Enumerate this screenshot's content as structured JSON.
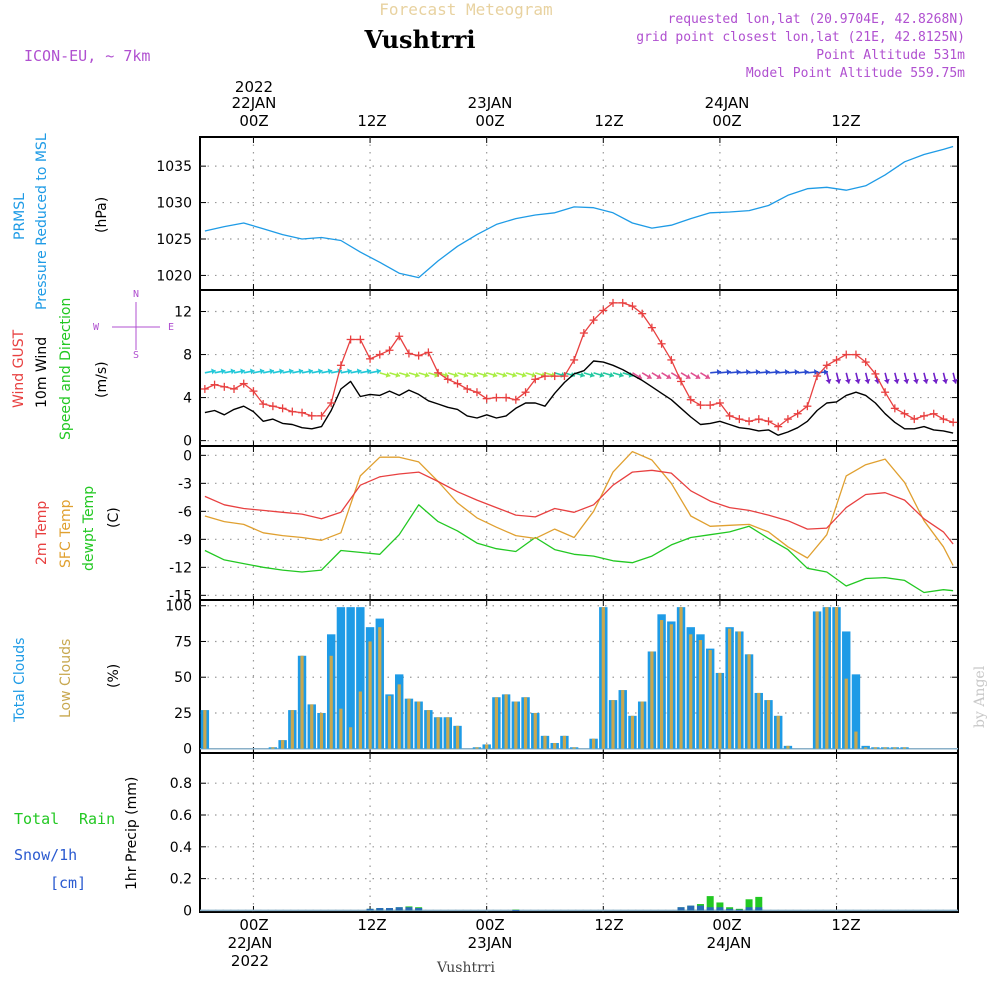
{
  "header": {
    "top_title": "Forecast Meteogram",
    "location": "Vushtrri",
    "model": "ICON-EU, ~ 7km",
    "requested": "requested lon,lat (20.9704E, 42.8268N)",
    "grid_point": "grid point closest lon,lat (21E, 42.8125N)",
    "point_altitude": "Point Altitude 531m",
    "model_altitude": "Model Point Altitude 559.75m",
    "watermark": "by Angel",
    "bottom_location": "Vushtrri"
  },
  "time_axis": {
    "top_year": "2022",
    "top_day_labels": [
      "22JAN",
      "23JAN",
      "24JAN"
    ],
    "top_hour_labels": [
      "00Z",
      "12Z",
      "00Z",
      "12Z",
      "00Z",
      "12Z"
    ],
    "bottom_hour_labels": [
      "00Z",
      "12Z",
      "00Z",
      "12Z",
      "00Z",
      "12Z"
    ],
    "bottom_day_labels": [
      "22JAN",
      "23JAN",
      "24JAN"
    ],
    "bottom_year": "2022"
  },
  "labels": {
    "pressure_a": "PRMSL",
    "pressure_b": "Pressure Reduced to MSL",
    "pressure_unit": "(hPa)",
    "wind_gust": "Wind GUST",
    "wind_10m": "10m Wind",
    "wind_dir": "Speed and Direction",
    "wind_unit": "(m/s)",
    "compass_n": "N",
    "compass_s": "S",
    "compass_w": "W",
    "compass_e": "E",
    "temp_2m": "2m Temp",
    "temp_sfc": "SFC Temp",
    "temp_dew": "dewpt Temp",
    "temp_unit": "(C)",
    "cloud_total": "Total Clouds",
    "cloud_low": "Low Clouds",
    "cloud_unit": "(%)",
    "precip_total": "Total",
    "precip_rain": "Rain",
    "precip_snow": "Snow/1h",
    "precip_snow_unit": "[cm]",
    "precip_axis": "1hr Precip (mm)"
  },
  "colors": {
    "pressure": "#1e9be6",
    "gust": "#e84040",
    "wind": "#000000",
    "t2m": "#e84040",
    "tsfc": "#e0a030",
    "dew": "#22c822",
    "total_cloud": "#1e9be6",
    "low_cloud": "#c8a850",
    "rain": "#22c822",
    "snow": "#2a5ad0",
    "label_purple": "#b050d0",
    "title_tan": "#e8d2a0"
  },
  "chart_data": [
    {
      "type": "line",
      "name": "pressure",
      "ylim": [
        1018,
        1039
      ],
      "yticks": [
        1020,
        1025,
        1030,
        1035
      ],
      "x_hours": [
        -5,
        -3,
        -1,
        1,
        3,
        5,
        7,
        9,
        11,
        13,
        15,
        17,
        19,
        21,
        23,
        25,
        27,
        29,
        31,
        33,
        35,
        37,
        39,
        41,
        43,
        45,
        47,
        49,
        51,
        53,
        55,
        57,
        59,
        61,
        63,
        65,
        67,
        69,
        71,
        72
      ],
      "values": [
        1026.1,
        1026.7,
        1027.2,
        1026.4,
        1025.6,
        1025.0,
        1025.2,
        1024.8,
        1023.2,
        1021.8,
        1020.3,
        1019.7,
        1022.0,
        1024.0,
        1025.6,
        1027.0,
        1027.8,
        1028.3,
        1028.6,
        1029.4,
        1029.3,
        1028.6,
        1027.2,
        1026.5,
        1026.9,
        1027.8,
        1028.6,
        1028.7,
        1028.9,
        1029.6,
        1031.0,
        1031.9,
        1032.1,
        1031.7,
        1032.3,
        1033.8,
        1035.6,
        1036.6,
        1037.3,
        1037.7
      ]
    },
    {
      "type": "line",
      "name": "wind",
      "ylim": [
        -0.5,
        14
      ],
      "yticks": [
        0,
        4,
        8,
        12
      ],
      "x_hours": [
        -5,
        -4,
        -3,
        -2,
        -1,
        0,
        1,
        2,
        3,
        4,
        5,
        6,
        7,
        8,
        9,
        10,
        11,
        12,
        13,
        14,
        15,
        16,
        17,
        18,
        19,
        20,
        21,
        22,
        23,
        24,
        25,
        26,
        27,
        28,
        29,
        30,
        31,
        32,
        33,
        34,
        35,
        36,
        37,
        38,
        39,
        40,
        41,
        42,
        43,
        44,
        45,
        46,
        47,
        48,
        49,
        50,
        51,
        52,
        53,
        54,
        55,
        56,
        57,
        58,
        59,
        60,
        61,
        62,
        63,
        64,
        65,
        66,
        67,
        68,
        69,
        70,
        71,
        72
      ],
      "series": [
        {
          "name": "Wind GUST",
          "values": [
            4.8,
            5.2,
            5.0,
            4.8,
            5.3,
            4.6,
            3.4,
            3.2,
            3.0,
            2.7,
            2.6,
            2.3,
            2.3,
            3.5,
            7.0,
            9.4,
            9.4,
            7.6,
            8.0,
            8.4,
            9.7,
            8.1,
            7.9,
            8.2,
            6.3,
            5.7,
            5.3,
            4.8,
            4.5,
            3.9,
            4.0,
            4.0,
            3.8,
            4.5,
            5.7,
            6.0,
            6.0,
            6.0,
            7.5,
            10.0,
            11.2,
            12.1,
            12.8,
            12.8,
            12.5,
            11.8,
            10.5,
            9.0,
            7.5,
            5.5,
            3.8,
            3.3,
            3.3,
            3.5,
            2.3,
            2.0,
            1.8,
            2.0,
            1.8,
            1.3,
            2.0,
            2.5,
            3.2,
            6.0,
            7.0,
            7.5,
            8.0,
            8.0,
            7.3,
            6.2,
            4.5,
            3.0,
            2.5,
            2.0,
            2.3,
            2.5,
            2.0,
            1.7
          ]
        },
        {
          "name": "10m Wind",
          "values": [
            2.6,
            2.8,
            2.4,
            2.9,
            3.2,
            2.7,
            1.8,
            2.0,
            1.6,
            1.5,
            1.2,
            1.1,
            1.3,
            2.8,
            4.8,
            5.5,
            4.1,
            4.3,
            4.2,
            4.6,
            4.2,
            4.7,
            4.3,
            3.7,
            3.4,
            3.1,
            2.9,
            2.3,
            2.1,
            2.4,
            2.1,
            2.3,
            3.0,
            3.5,
            3.5,
            3.2,
            4.4,
            5.4,
            6.2,
            6.5,
            7.4,
            7.3,
            7.0,
            6.6,
            6.1,
            5.6,
            5.0,
            4.4,
            3.8,
            3.0,
            2.2,
            1.5,
            1.6,
            1.8,
            1.5,
            1.2,
            1.1,
            0.9,
            1.0,
            0.5,
            0.8,
            1.2,
            1.8,
            2.8,
            3.5,
            3.6,
            4.2,
            4.5,
            4.2,
            3.5,
            2.5,
            1.7,
            1.1,
            1.1,
            1.3,
            1.0,
            0.9,
            0.7
          ]
        }
      ],
      "barbs_y": 6.3,
      "barb_dir": [
        {
          "hours": [
            -5,
            12
          ],
          "vector": [
            10,
            -2
          ],
          "color": "#22c8d8"
        },
        {
          "hours": [
            13,
            30
          ],
          "vector": [
            10,
            3
          ],
          "color": "#aaee44"
        },
        {
          "hours": [
            31,
            38
          ],
          "vector": [
            10,
            3
          ],
          "color": "#22c8a0"
        },
        {
          "hours": [
            39,
            46
          ],
          "vector": [
            10,
            6
          ],
          "color": "#e05090"
        },
        {
          "hours": [
            47,
            58
          ],
          "vector": [
            10,
            -1
          ],
          "color": "#2a4ad0"
        },
        {
          "hours": [
            59,
            72
          ],
          "vector": [
            2,
            8
          ],
          "color": "#7020c8"
        }
      ]
    },
    {
      "type": "line",
      "name": "temperature",
      "ylim": [
        -15.5,
        1
      ],
      "yticks": [
        0,
        -3,
        -6,
        -9,
        -12,
        -15
      ],
      "x_hours": [
        -5,
        -3,
        -1,
        1,
        3,
        5,
        7,
        9,
        11,
        13,
        15,
        17,
        19,
        21,
        23,
        25,
        27,
        29,
        31,
        33,
        35,
        37,
        39,
        41,
        43,
        45,
        47,
        49,
        51,
        53,
        55,
        57,
        59,
        61,
        63,
        65,
        67,
        69,
        71,
        72
      ],
      "series": [
        {
          "name": "2m Temp",
          "values": [
            -4.4,
            -5.3,
            -5.7,
            -5.9,
            -6.1,
            -6.3,
            -6.8,
            -6.1,
            -3.2,
            -2.3,
            -2.0,
            -1.8,
            -2.8,
            -3.9,
            -4.8,
            -5.6,
            -6.4,
            -6.6,
            -5.7,
            -6.1,
            -5.3,
            -3.2,
            -1.8,
            -1.6,
            -1.9,
            -3.8,
            -4.9,
            -5.6,
            -5.9,
            -6.4,
            -7.0,
            -7.9,
            -7.8,
            -5.6,
            -4.2,
            -4.0,
            -4.8,
            -6.8,
            -8.2,
            -9.5
          ]
        },
        {
          "name": "SFC Temp",
          "values": [
            -6.5,
            -7.1,
            -7.4,
            -8.3,
            -8.6,
            -8.8,
            -9.1,
            -8.3,
            -2.2,
            -0.2,
            -0.2,
            -0.7,
            -2.8,
            -5.1,
            -6.7,
            -7.7,
            -8.6,
            -8.9,
            -7.9,
            -8.8,
            -6.0,
            -1.8,
            0.4,
            -0.5,
            -3.0,
            -6.5,
            -7.6,
            -7.5,
            -7.4,
            -8.2,
            -9.8,
            -11.0,
            -8.5,
            -2.2,
            -1.0,
            -0.4,
            -2.9,
            -7.0,
            -9.8,
            -11.8
          ]
        },
        {
          "name": "dewpt Temp",
          "values": [
            -10.2,
            -11.2,
            -11.6,
            -12.0,
            -12.3,
            -12.5,
            -12.3,
            -10.2,
            -10.4,
            -10.6,
            -8.5,
            -5.3,
            -7.1,
            -8.1,
            -9.4,
            -10.0,
            -10.3,
            -8.8,
            -10.1,
            -10.6,
            -10.8,
            -11.3,
            -11.5,
            -10.8,
            -9.6,
            -8.8,
            -8.5,
            -8.2,
            -7.6,
            -8.9,
            -10.1,
            -12.1,
            -12.5,
            -14.0,
            -13.2,
            -13.1,
            -13.4,
            -14.7,
            -14.4,
            -14.5
          ]
        }
      ]
    },
    {
      "type": "bar",
      "name": "clouds",
      "ylim": [
        -3,
        104
      ],
      "yticks": [
        0,
        25,
        50,
        75,
        100
      ],
      "x_hours": [
        -5,
        -4,
        -3,
        -2,
        -1,
        0,
        1,
        2,
        3,
        4,
        5,
        6,
        7,
        8,
        9,
        10,
        11,
        12,
        13,
        14,
        15,
        16,
        17,
        18,
        19,
        20,
        21,
        22,
        23,
        24,
        25,
        26,
        27,
        28,
        29,
        30,
        31,
        32,
        33,
        34,
        35,
        36,
        37,
        38,
        39,
        40,
        41,
        42,
        43,
        44,
        45,
        46,
        47,
        48,
        49,
        50,
        51,
        52,
        53,
        54,
        55,
        56,
        57,
        58,
        59,
        60,
        61,
        62,
        63,
        64,
        65,
        66,
        67,
        68,
        69,
        70,
        71,
        72
      ],
      "series": [
        {
          "name": "Total Clouds",
          "values": [
            27,
            0,
            0,
            0,
            0,
            0,
            0,
            1,
            6,
            27,
            65,
            31,
            25,
            80,
            99,
            99,
            99,
            85,
            91,
            38,
            52,
            35,
            33,
            27,
            22,
            22,
            16,
            0,
            1,
            3,
            36,
            38,
            33,
            36,
            25,
            9,
            4,
            9,
            1,
            0,
            7,
            99,
            34,
            41,
            23,
            33,
            68,
            94,
            89,
            99,
            85,
            80,
            70,
            53,
            85,
            82,
            66,
            39,
            34,
            23,
            2,
            0,
            0,
            96,
            99,
            99,
            82,
            52,
            2,
            1,
            1,
            1,
            1,
            0,
            0,
            0,
            0,
            0
          ]
        },
        {
          "name": "Low Clouds",
          "values": [
            27,
            0,
            0,
            0,
            0,
            0,
            0,
            1,
            6,
            27,
            65,
            31,
            25,
            65,
            28,
            15,
            40,
            75,
            85,
            37,
            45,
            35,
            33,
            27,
            22,
            22,
            16,
            0,
            1,
            3,
            36,
            38,
            33,
            36,
            25,
            9,
            4,
            9,
            1,
            0,
            7,
            99,
            34,
            41,
            23,
            33,
            68,
            90,
            87,
            99,
            80,
            76,
            69,
            53,
            84,
            82,
            66,
            39,
            34,
            23,
            2,
            0,
            0,
            96,
            99,
            99,
            49,
            12,
            1,
            1,
            1,
            1,
            1,
            0,
            0,
            0,
            0,
            0
          ]
        }
      ]
    },
    {
      "type": "bar",
      "name": "precip",
      "ylim": [
        -0.01,
        0.99
      ],
      "yticks": [
        0,
        0.2,
        0.4,
        0.6,
        0.8
      ],
      "ytick_labels": [
        "0",
        "0.2",
        "0.4",
        "0.6",
        "0.8"
      ],
      "x_hours": [
        12,
        13,
        14,
        15,
        16,
        17,
        27,
        44,
        45,
        46,
        47,
        48,
        49,
        50,
        51,
        52
      ],
      "series": [
        {
          "name": "Total Rain",
          "values": [
            0.01,
            0.015,
            0.015,
            0.02,
            0.025,
            0.02,
            0.005,
            0.02,
            0.03,
            0.04,
            0.09,
            0.05,
            0.02,
            0.01,
            0.07,
            0.085
          ]
        },
        {
          "name": "Snow/1h",
          "values": [
            0.01,
            0.015,
            0.015,
            0.02,
            0.02,
            0.015,
            0.003,
            0.02,
            0.03,
            0.03,
            0.02,
            0.02,
            0.01,
            0.005,
            0.02,
            0.02
          ]
        }
      ]
    }
  ]
}
